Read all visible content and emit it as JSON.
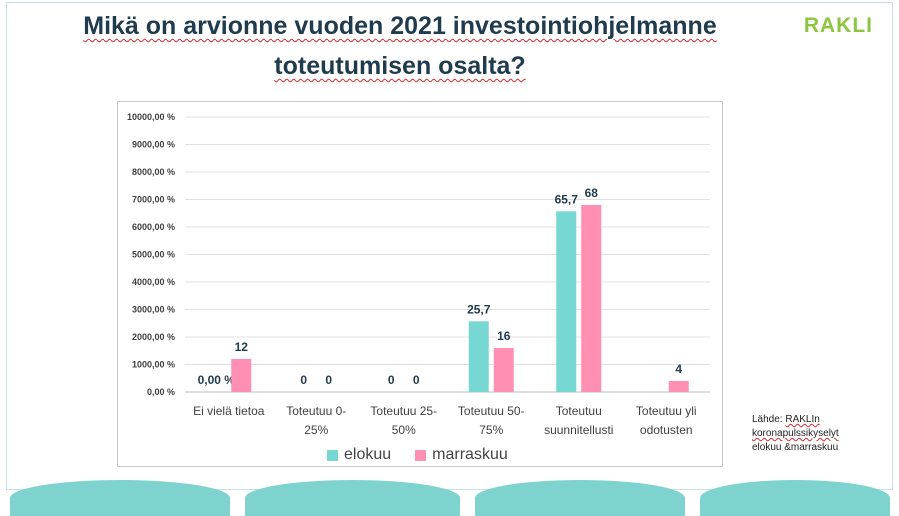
{
  "title_line1": "Mikä on arvionne vuoden 2021 investointiohjelmanne",
  "title_line2": "toteutumisen osalta?",
  "logo": "RAKLI",
  "source": {
    "line1": "Lähde: RAKLIn",
    "line2": "koronapulssikyselyt",
    "line3": "elokuu &marraskuu"
  },
  "colors": {
    "elokuu": "#76d7d3",
    "marraskuu": "#ff8fb3",
    "title": "#1f3b4d",
    "logo": "#8cc63f",
    "wave": "#7fd3cf"
  },
  "chart_data": {
    "type": "bar",
    "categories": [
      [
        "Ei vielä tietoa"
      ],
      [
        "Toteutuu 0-",
        "25%"
      ],
      [
        "Toteutuu 25-",
        "50%"
      ],
      [
        "Toteutuu 50-",
        "75%"
      ],
      [
        "Toteutuu",
        "suunnitellusti"
      ],
      [
        "Toteutuu yli",
        "odotusten"
      ]
    ],
    "series": [
      {
        "name": "elokuu",
        "values": [
          0,
          0,
          0,
          25.7,
          65.7,
          0
        ],
        "labels": [
          "0,00 %",
          "0",
          "0",
          "25,7",
          "65,7",
          ""
        ]
      },
      {
        "name": "marraskuu",
        "values": [
          12,
          0,
          0,
          16,
          68,
          4
        ],
        "labels": [
          "12",
          "0",
          "0",
          "16",
          "68",
          "4"
        ]
      }
    ],
    "ytick_labels": [
      "0,00 %",
      "1000,00 %",
      "2000,00 %",
      "3000,00 %",
      "4000,00 %",
      "5000,00 %",
      "6000,00 %",
      "7000,00 %",
      "8000,00 %",
      "9000,00 %",
      "10000,00 %"
    ],
    "ylim": [
      0,
      100
    ],
    "grid": true,
    "legend": "bottom"
  }
}
